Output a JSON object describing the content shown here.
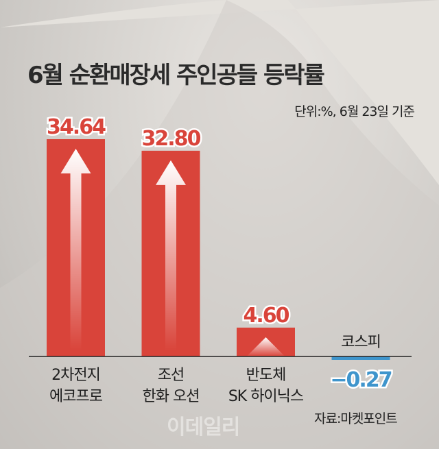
{
  "title": "6월 순환매장세 주인공들 등락률",
  "unit_note": "단위:%, 6월 23일 기준",
  "source": "자료:마켓포인트",
  "watermark": "이데일리",
  "colors": {
    "positive": "#d9443a",
    "negative": "#3f95cc"
  },
  "chart_data": {
    "type": "bar",
    "title": "6월 순환매장세 주인공들 등락률",
    "categories": [
      [
        "2차전지",
        "에코프로"
      ],
      [
        "조선",
        "한화 오션"
      ],
      [
        "반도체",
        "SK 하이닉스"
      ],
      [
        "코스피"
      ]
    ],
    "values": [
      34.64,
      32.8,
      4.6,
      -0.27
    ],
    "value_labels": [
      "34.64",
      "32.80",
      "4.60",
      "−0.27"
    ],
    "ylabel": "단위:%",
    "grid": false
  }
}
